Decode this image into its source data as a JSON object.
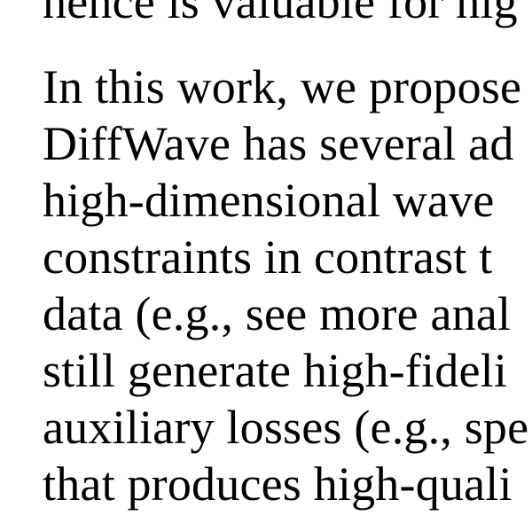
{
  "paper": {
    "previous_paragraph_tail": "hence is valuable for hig",
    "paragraph_lines": [
      "In this work, we propose",
      "DiffWave has several ad",
      "high-dimensional  wave",
      "constraints in contrast t",
      "data (e.g., see more anal",
      "still generate high-fideli",
      "auxiliary losses (e.g., spe",
      "that produces high-quali"
    ]
  }
}
